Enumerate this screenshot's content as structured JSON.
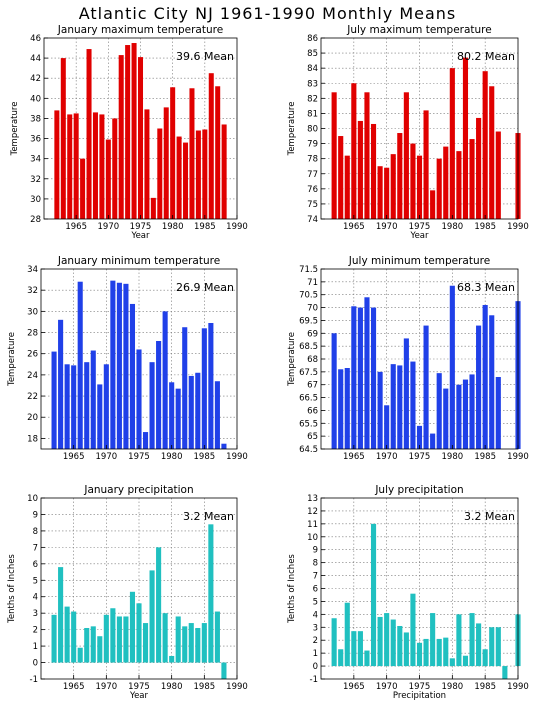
{
  "title": "Atlantic City NJ   1961-1990 Monthly Means",
  "chart_data": [
    {
      "type": "bar",
      "title": "January maximum temperature",
      "ylabel": "Temperature",
      "xlabel": "Year",
      "mean_label": "39.6 Mean",
      "color": "#e00000",
      "xlim": [
        1960,
        1990
      ],
      "ylim": [
        28,
        46
      ],
      "yticks": [
        28,
        30,
        32,
        34,
        36,
        38,
        40,
        42,
        44,
        46
      ],
      "xticks": [
        1965,
        1970,
        1975,
        1980,
        1985,
        1990
      ],
      "years": [
        1962,
        1963,
        1964,
        1965,
        1966,
        1967,
        1968,
        1969,
        1970,
        1971,
        1972,
        1973,
        1974,
        1975,
        1976,
        1977,
        1978,
        1979,
        1980,
        1981,
        1982,
        1983,
        1984,
        1985,
        1986,
        1987,
        1988
      ],
      "values": [
        38.8,
        44.0,
        38.4,
        38.5,
        34.0,
        44.9,
        38.6,
        38.4,
        35.9,
        38.0,
        44.3,
        45.3,
        45.5,
        44.1,
        38.9,
        30.1,
        37.0,
        39.1,
        41.1,
        36.2,
        35.6,
        41.0,
        36.8,
        36.9,
        42.5,
        41.2,
        37.4
      ]
    },
    {
      "type": "bar",
      "title": "July maximum temperature",
      "ylabel": "Temperature",
      "xlabel": "Year",
      "mean_label": "80.2 Mean",
      "color": "#e00000",
      "xlim": [
        1960,
        1990
      ],
      "ylim": [
        74,
        86
      ],
      "yticks": [
        74,
        75,
        76,
        77,
        78,
        79,
        80,
        81,
        82,
        83,
        84,
        85,
        86
      ],
      "xticks": [
        1965,
        1970,
        1975,
        1980,
        1985,
        1990
      ],
      "years": [
        1962,
        1963,
        1964,
        1965,
        1966,
        1967,
        1968,
        1969,
        1970,
        1971,
        1972,
        1973,
        1974,
        1975,
        1976,
        1977,
        1978,
        1979,
        1980,
        1981,
        1982,
        1983,
        1984,
        1985,
        1986,
        1987,
        1988,
        1990
      ],
      "values": [
        82.4,
        79.5,
        78.2,
        83.0,
        80.5,
        82.4,
        80.3,
        77.5,
        77.4,
        78.3,
        79.7,
        82.4,
        79.0,
        78.2,
        81.2,
        75.9,
        78.0,
        78.8,
        84.0,
        78.5,
        84.7,
        79.3,
        80.7,
        83.8,
        82.8,
        79.8,
        74.0,
        79.7
      ]
    },
    {
      "type": "bar",
      "title": "January minimum temperature",
      "ylabel": "Temperature",
      "xlabel": "",
      "mean_label": "26.9 Mean",
      "color": "#2040e8",
      "xlim": [
        1960,
        1990
      ],
      "ylim": [
        17,
        34
      ],
      "yticks": [
        18,
        20,
        22,
        24,
        26,
        28,
        30,
        32,
        34
      ],
      "xticks": [
        1965,
        1970,
        1975,
        1980,
        1985,
        1990
      ],
      "years": [
        1962,
        1963,
        1964,
        1965,
        1966,
        1967,
        1968,
        1969,
        1970,
        1971,
        1972,
        1973,
        1974,
        1975,
        1976,
        1977,
        1978,
        1979,
        1980,
        1981,
        1982,
        1983,
        1984,
        1985,
        1986,
        1987,
        1988
      ],
      "values": [
        26.2,
        29.2,
        25.0,
        24.9,
        32.8,
        25.2,
        26.3,
        23.1,
        25.0,
        32.9,
        32.7,
        32.6,
        30.7,
        26.4,
        18.6,
        25.2,
        27.2,
        30.0,
        23.3,
        22.7,
        28.5,
        23.9,
        24.2,
        28.4,
        28.9,
        23.4,
        17.5
      ]
    },
    {
      "type": "bar",
      "title": "July minimum temperature",
      "ylabel": "Temperature",
      "xlabel": "",
      "mean_label": "68.3 Mean",
      "color": "#2040e8",
      "xlim": [
        1960,
        1990
      ],
      "ylim": [
        64.5,
        71.5
      ],
      "yticks": [
        64.5,
        65,
        65.5,
        66,
        66.5,
        67,
        67.5,
        68,
        68.5,
        69,
        69.5,
        70,
        70.5,
        71,
        71.5
      ],
      "xticks": [
        1965,
        1970,
        1975,
        1980,
        1985,
        1990
      ],
      "years": [
        1962,
        1963,
        1964,
        1965,
        1966,
        1967,
        1968,
        1969,
        1970,
        1971,
        1972,
        1973,
        1974,
        1975,
        1976,
        1977,
        1978,
        1979,
        1980,
        1981,
        1982,
        1983,
        1984,
        1985,
        1986,
        1987,
        1988,
        1990
      ],
      "values": [
        69.0,
        67.6,
        67.65,
        70.05,
        70.0,
        70.4,
        70.0,
        67.5,
        66.2,
        67.8,
        67.75,
        68.8,
        67.9,
        65.4,
        69.3,
        65.1,
        67.45,
        66.85,
        70.85,
        67.0,
        67.2,
        67.4,
        69.3,
        70.1,
        69.7,
        67.3,
        64.5,
        70.25
      ]
    },
    {
      "type": "bar",
      "title": "January precipitation",
      "ylabel": "Tenths of Inches",
      "xlabel": "Year",
      "mean_label": "3.2  Mean",
      "color": "#20c0c0",
      "xlim": [
        1960,
        1990
      ],
      "ylim": [
        -1,
        10
      ],
      "yticks": [
        -1,
        0,
        1,
        2,
        3,
        4,
        5,
        6,
        7,
        8,
        9,
        10
      ],
      "xticks": [
        1965,
        1970,
        1975,
        1980,
        1985,
        1990
      ],
      "years": [
        1962,
        1963,
        1964,
        1965,
        1966,
        1967,
        1968,
        1969,
        1970,
        1971,
        1972,
        1973,
        1974,
        1975,
        1976,
        1977,
        1978,
        1979,
        1980,
        1981,
        1982,
        1983,
        1984,
        1985,
        1986,
        1987,
        1988
      ],
      "values": [
        2.9,
        5.8,
        3.4,
        3.1,
        0.9,
        2.1,
        2.2,
        1.6,
        2.9,
        3.3,
        2.8,
        2.8,
        4.3,
        3.6,
        2.4,
        5.6,
        7.0,
        3.0,
        0.4,
        2.8,
        2.2,
        2.4,
        2.1,
        2.4,
        8.4,
        3.1,
        -1.0
      ]
    },
    {
      "type": "bar",
      "title": "July precipitation",
      "ylabel": "Tenths of Inches",
      "xlabel": "Precipitation",
      "mean_label": "3.2  Mean",
      "color": "#20c0c0",
      "xlim": [
        1960,
        1990
      ],
      "ylim": [
        -1,
        13
      ],
      "yticks": [
        -1,
        0,
        1,
        2,
        3,
        4,
        5,
        6,
        7,
        8,
        9,
        10,
        11,
        12,
        13
      ],
      "xticks": [
        1965,
        1970,
        1975,
        1980,
        1985,
        1990
      ],
      "years": [
        1962,
        1963,
        1964,
        1965,
        1966,
        1967,
        1968,
        1969,
        1970,
        1971,
        1972,
        1973,
        1974,
        1975,
        1976,
        1977,
        1978,
        1979,
        1980,
        1981,
        1982,
        1983,
        1984,
        1985,
        1986,
        1987,
        1988,
        1990
      ],
      "values": [
        3.7,
        1.3,
        4.9,
        2.7,
        2.7,
        1.2,
        11.0,
        3.8,
        4.1,
        3.6,
        3.1,
        2.6,
        5.6,
        1.8,
        2.1,
        4.1,
        2.1,
        2.2,
        0.6,
        4.0,
        0.8,
        4.1,
        3.3,
        1.3,
        3.0,
        3.0,
        -1.0,
        4.0
      ]
    }
  ]
}
